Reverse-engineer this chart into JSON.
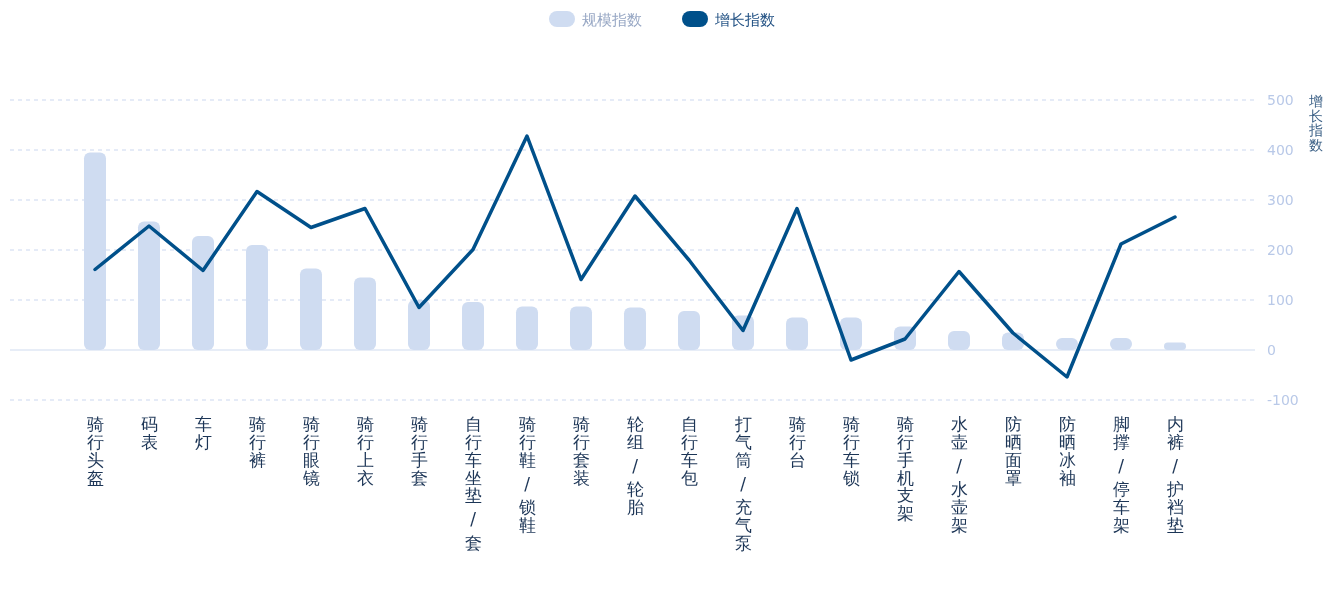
{
  "chart_data": {
    "type": "bar",
    "categories": [
      "骑行头盔",
      "码表",
      "车灯",
      "骑行裤",
      "骑行眼镜",
      "骑行上衣",
      "骑行手套",
      "自行车坐垫 / 套",
      "骑行鞋 / 锁鞋",
      "骑行套装",
      "轮组 / 轮胎",
      "自行车包",
      "打气筒 / 充气泵",
      "骑行台",
      "骑行车锁",
      "骑行手机支架",
      "水壶 / 水壶架",
      "防晒面罩",
      "防晒冰袖",
      "脚撑 / 停车架",
      "内裤 / 护裆垫"
    ],
    "series": [
      {
        "name": "规模指数",
        "axis": "y2",
        "color": "#cfdcf1",
        "values": [
          395,
          257,
          228,
          210,
          163,
          145,
          100,
          96,
          87,
          87,
          85,
          78,
          69,
          65,
          65,
          47,
          38,
          35,
          24,
          24,
          15
        ]
      },
      {
        "name": "增长指数",
        "type": "line",
        "axis": "y2",
        "color": "#00508a",
        "values": [
          161,
          248,
          159,
          317,
          245,
          283,
          85,
          201,
          428,
          141,
          308,
          180,
          39,
          283,
          -20,
          22,
          157,
          34,
          -54,
          212,
          266
        ]
      }
    ],
    "y2label": "增长指数",
    "y2lim": [
      -100,
      500
    ],
    "y2ticks": [
      -100,
      0,
      100,
      200,
      300,
      400,
      500
    ],
    "grid": "y",
    "legend": "top",
    "marker": "none",
    "line_style": "solid"
  }
}
